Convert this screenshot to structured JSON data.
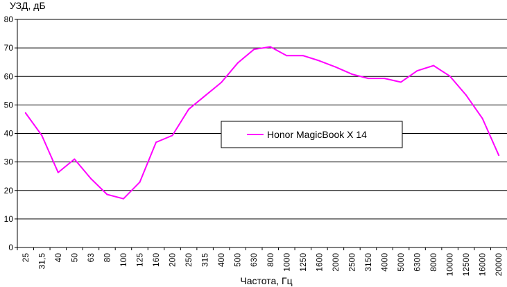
{
  "chart_data": {
    "type": "line",
    "title": "",
    "ylabel": "УЗД, дБ",
    "xlabel": "Частота, Гц",
    "ylim": [
      0,
      80
    ],
    "yticks": [
      0,
      10,
      20,
      30,
      40,
      50,
      60,
      70,
      80
    ],
    "grid": true,
    "legend_position": "center",
    "categories": [
      "25",
      "31,5",
      "40",
      "50",
      "63",
      "80",
      "100",
      "125",
      "160",
      "200",
      "250",
      "315",
      "400",
      "500",
      "630",
      "800",
      "1000",
      "1250",
      "1600",
      "2000",
      "2500",
      "3150",
      "4000",
      "5000",
      "6300",
      "8000",
      "10000",
      "12500",
      "16000",
      "20000"
    ],
    "series": [
      {
        "name": "Honor MagicBook X 14",
        "color": "#ff00ff",
        "values": [
          47.2,
          39.3,
          26.3,
          31.0,
          24.2,
          18.6,
          17.1,
          22.9,
          36.9,
          39.3,
          48.5,
          53.2,
          57.9,
          64.7,
          69.5,
          70.4,
          67.3,
          67.3,
          65.5,
          63.3,
          60.8,
          59.3,
          59.3,
          58.0,
          62.0,
          63.8,
          60.1,
          53.4,
          45.2,
          32.3
        ]
      }
    ]
  }
}
